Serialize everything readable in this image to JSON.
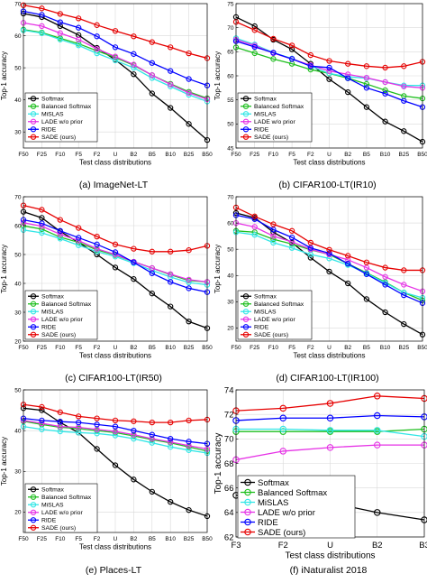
{
  "chart_data": [
    {
      "type": "line",
      "caption": "(a) ImageNet-LT",
      "xlabel": "Test class distributions",
      "ylabel": "Top-1 accuracy",
      "categories": [
        "F50",
        "F25",
        "F10",
        "F5",
        "F2",
        "U",
        "B2",
        "B5",
        "B10",
        "B25",
        "B50"
      ],
      "ylim": [
        25,
        70
      ],
      "yticks": [
        30,
        40,
        50,
        60,
        70
      ],
      "grid": true,
      "legend": "bottom-left",
      "series": [
        {
          "name": "Softmax",
          "color": "#000000",
          "values": [
            66.9,
            65.8,
            63.0,
            60.2,
            56.2,
            52.5,
            48.0,
            42.0,
            37.5,
            32.5,
            27.5
          ]
        },
        {
          "name": "Balanced Softmax",
          "color": "#1fbf1f",
          "values": [
            61.9,
            61.0,
            59.2,
            57.5,
            55.3,
            53.2,
            50.8,
            47.7,
            45.0,
            42.5,
            40.5
          ]
        },
        {
          "name": "MiSLAS",
          "color": "#33e6e6",
          "values": [
            61.7,
            60.8,
            58.8,
            57.0,
            54.5,
            52.3,
            50.0,
            46.8,
            44.2,
            41.6,
            39.5
          ]
        },
        {
          "name": "LADE w/o prior",
          "color": "#e633e6",
          "values": [
            64.0,
            63.0,
            60.8,
            58.8,
            55.9,
            53.5,
            51.0,
            47.7,
            44.8,
            42.2,
            40.2
          ]
        },
        {
          "name": "RIDE",
          "color": "#0000ff",
          "values": [
            67.6,
            66.5,
            64.2,
            62.5,
            59.8,
            56.4,
            54.3,
            51.5,
            49.0,
            46.5,
            44.5
          ]
        },
        {
          "name": "SADE (ours)",
          "color": "#e60000",
          "values": [
            69.5,
            68.5,
            66.8,
            65.4,
            63.3,
            61.5,
            59.8,
            58.0,
            56.4,
            54.5,
            53.0
          ]
        }
      ]
    },
    {
      "type": "line",
      "caption": "(b) CIFAR100-LT(IR10)",
      "xlabel": "Test class distributions",
      "ylabel": "Top-1 accuracy",
      "categories": [
        "F50",
        "F25",
        "F10",
        "F5",
        "F2",
        "U",
        "B2",
        "B5",
        "B10",
        "B25",
        "B50"
      ],
      "ylim": [
        45,
        75
      ],
      "yticks": [
        45,
        50,
        55,
        60,
        65,
        70,
        75
      ],
      "grid": true,
      "legend": "bottom-left",
      "series": [
        {
          "name": "Softmax",
          "color": "#000000",
          "values": [
            72.2,
            70.3,
            67.5,
            65.5,
            62.5,
            59.3,
            56.6,
            53.5,
            50.5,
            48.5,
            46.3
          ]
        },
        {
          "name": "Balanced Softmax",
          "color": "#1fbf1f",
          "values": [
            65.9,
            64.7,
            63.5,
            62.5,
            61.3,
            60.5,
            59.5,
            58.3,
            57.0,
            55.8,
            55.3
          ]
        },
        {
          "name": "MiSLAS",
          "color": "#33e6e6",
          "values": [
            67.8,
            66.5,
            64.8,
            63.6,
            62.0,
            60.5,
            59.8,
            59.5,
            58.7,
            58.0,
            58.0
          ]
        },
        {
          "name": "LADE w/o prior",
          "color": "#e633e6",
          "values": [
            67.5,
            66.3,
            64.7,
            63.5,
            62.2,
            61.0,
            60.3,
            59.6,
            58.7,
            57.8,
            57.5
          ]
        },
        {
          "name": "RIDE",
          "color": "#0000ff",
          "values": [
            67.2,
            66.0,
            64.8,
            63.5,
            62.0,
            61.7,
            59.5,
            57.5,
            56.3,
            54.8,
            53.5
          ]
        },
        {
          "name": "SADE (ours)",
          "color": "#e60000",
          "values": [
            71.2,
            69.5,
            67.7,
            66.3,
            64.3,
            63.1,
            62.5,
            62.0,
            61.7,
            62.0,
            62.9
          ]
        }
      ]
    },
    {
      "type": "line",
      "caption": "(c) CIFAR100-LT(IR50)",
      "xlabel": "Test class distributions",
      "ylabel": "Top-1 accuracy",
      "categories": [
        "F50",
        "F25",
        "F10",
        "F5",
        "F2",
        "U",
        "B2",
        "B5",
        "B10",
        "B25",
        "B50"
      ],
      "ylim": [
        20,
        70
      ],
      "yticks": [
        20,
        30,
        40,
        50,
        60,
        70
      ],
      "grid": true,
      "legend": "bottom-left",
      "series": [
        {
          "name": "Softmax",
          "color": "#000000",
          "values": [
            64.8,
            62.7,
            58.0,
            54.2,
            50.0,
            45.5,
            41.5,
            36.5,
            32.0,
            26.8,
            24.5
          ]
        },
        {
          "name": "Balanced Softmax",
          "color": "#1fbf1f",
          "values": [
            59.9,
            58.8,
            56.0,
            54.2,
            51.6,
            49.8,
            47.5,
            45.3,
            43.0,
            41.0,
            40.5
          ]
        },
        {
          "name": "MiSLAS",
          "color": "#33e6e6",
          "values": [
            58.5,
            57.5,
            55.5,
            53.2,
            51.0,
            49.3,
            47.0,
            44.5,
            42.2,
            40.3,
            39.5
          ]
        },
        {
          "name": "LADE w/o prior",
          "color": "#e633e6",
          "values": [
            61.0,
            59.8,
            57.0,
            54.8,
            52.0,
            50.0,
            47.5,
            45.3,
            43.2,
            41.3,
            40.5
          ]
        },
        {
          "name": "RIDE",
          "color": "#0000ff",
          "values": [
            62.0,
            60.8,
            58.2,
            55.8,
            53.5,
            50.8,
            47.3,
            43.5,
            40.5,
            38.3,
            37.0
          ]
        },
        {
          "name": "SADE (ours)",
          "color": "#e60000",
          "values": [
            67.0,
            65.5,
            62.0,
            59.2,
            56.2,
            53.5,
            52.0,
            51.0,
            51.0,
            51.5,
            53.0
          ]
        }
      ]
    },
    {
      "type": "line",
      "caption": "(d) CIFAR100-LT(IR100)",
      "xlabel": "Test class distributions",
      "ylabel": "Top-1 accuracy",
      "categories": [
        "F50",
        "F25",
        "F10",
        "F5",
        "F2",
        "U",
        "B2",
        "B5",
        "B10",
        "B25",
        "B50"
      ],
      "ylim": [
        15,
        70
      ],
      "yticks": [
        20,
        30,
        40,
        50,
        60,
        70
      ],
      "grid": true,
      "legend": "bottom-left",
      "series": [
        {
          "name": "Softmax",
          "color": "#000000",
          "values": [
            63.8,
            62.0,
            56.5,
            52.5,
            46.8,
            41.5,
            37.0,
            31.0,
            26.0,
            21.5,
            17.5
          ]
        },
        {
          "name": "Balanced Softmax",
          "color": "#1fbf1f",
          "values": [
            57.0,
            56.5,
            53.8,
            52.0,
            49.8,
            48.0,
            44.5,
            41.0,
            37.5,
            33.5,
            30.5
          ]
        },
        {
          "name": "MiSLAS",
          "color": "#33e6e6",
          "values": [
            56.5,
            55.5,
            52.5,
            50.5,
            48.0,
            46.5,
            44.0,
            40.8,
            37.2,
            33.5,
            31.5
          ]
        },
        {
          "name": "LADE w/o prior",
          "color": "#e633e6",
          "values": [
            60.0,
            58.5,
            55.0,
            52.8,
            50.0,
            48.0,
            46.0,
            43.0,
            39.5,
            36.5,
            34.0
          ]
        },
        {
          "name": "RIDE",
          "color": "#0000ff",
          "values": [
            63.0,
            61.5,
            57.5,
            54.5,
            50.5,
            48.5,
            44.5,
            40.5,
            36.5,
            32.5,
            29.5
          ]
        },
        {
          "name": "SADE (ours)",
          "color": "#e60000",
          "values": [
            65.9,
            62.5,
            59.5,
            57.0,
            52.5,
            49.8,
            47.5,
            45.0,
            43.0,
            42.0,
            42.0
          ]
        }
      ]
    },
    {
      "type": "line",
      "caption": "(e) Places-LT",
      "xlabel": "Test class distributions",
      "ylabel": "Top-1 accuracy",
      "categories": [
        "F50",
        "F25",
        "F10",
        "F5",
        "F2",
        "U",
        "B2",
        "B5",
        "B10",
        "B25",
        "B50"
      ],
      "ylim": [
        15,
        50
      ],
      "yticks": [
        20,
        30,
        40,
        50
      ],
      "grid": true,
      "legend": "bottom-left",
      "series": [
        {
          "name": "Softmax",
          "color": "#000000",
          "values": [
            45.5,
            45.0,
            42.0,
            39.5,
            35.5,
            31.5,
            28.0,
            25.0,
            22.5,
            20.5,
            19.0
          ]
        },
        {
          "name": "Balanced Softmax",
          "color": "#1fbf1f",
          "values": [
            42.3,
            41.5,
            40.8,
            40.5,
            40.0,
            39.5,
            38.7,
            37.8,
            37.0,
            36.0,
            35.0
          ]
        },
        {
          "name": "MiSLAS",
          "color": "#33e6e6",
          "values": [
            41.0,
            40.3,
            39.8,
            39.5,
            39.3,
            38.8,
            38.0,
            37.0,
            36.0,
            35.2,
            34.5
          ]
        },
        {
          "name": "LADE w/o prior",
          "color": "#e633e6",
          "values": [
            42.5,
            41.8,
            41.0,
            40.8,
            40.3,
            39.8,
            39.0,
            38.0,
            37.2,
            36.3,
            35.5
          ]
        },
        {
          "name": "RIDE",
          "color": "#0000ff",
          "values": [
            43.0,
            42.5,
            42.2,
            42.0,
            41.5,
            41.0,
            40.0,
            39.0,
            38.0,
            37.3,
            36.8
          ]
        },
        {
          "name": "SADE (ours)",
          "color": "#e60000",
          "values": [
            46.4,
            45.8,
            44.5,
            43.5,
            43.0,
            42.5,
            42.3,
            42.0,
            42.0,
            42.5,
            42.7
          ]
        }
      ]
    },
    {
      "type": "line",
      "caption": "(f) iNaturalist 2018",
      "xlabel": "Test class distributions",
      "ylabel": "Top-1 accuracy",
      "categories": [
        "F3",
        "F2",
        "U",
        "B2",
        "B3"
      ],
      "ylim": [
        62,
        74
      ],
      "yticks": [
        62,
        64,
        66,
        68,
        70,
        72,
        74
      ],
      "grid": true,
      "legend": "bottom-left",
      "series": [
        {
          "name": "Softmax",
          "color": "#000000",
          "values": [
            65.4,
            65.3,
            64.8,
            64.0,
            63.4
          ]
        },
        {
          "name": "Balanced Softmax",
          "color": "#1fbf1f",
          "values": [
            70.6,
            70.6,
            70.6,
            70.6,
            70.8
          ]
        },
        {
          "name": "MiSLAS",
          "color": "#33e6e6",
          "values": [
            70.8,
            70.8,
            70.7,
            70.7,
            70.2
          ]
        },
        {
          "name": "LADE w/o prior",
          "color": "#e633e6",
          "values": [
            68.3,
            69.0,
            69.3,
            69.5,
            69.5
          ]
        },
        {
          "name": "RIDE",
          "color": "#0000ff",
          "values": [
            71.5,
            71.7,
            71.7,
            71.9,
            71.8
          ]
        },
        {
          "name": "SADE (ours)",
          "color": "#e60000",
          "values": [
            72.3,
            72.5,
            72.9,
            73.5,
            73.3
          ]
        }
      ]
    }
  ]
}
